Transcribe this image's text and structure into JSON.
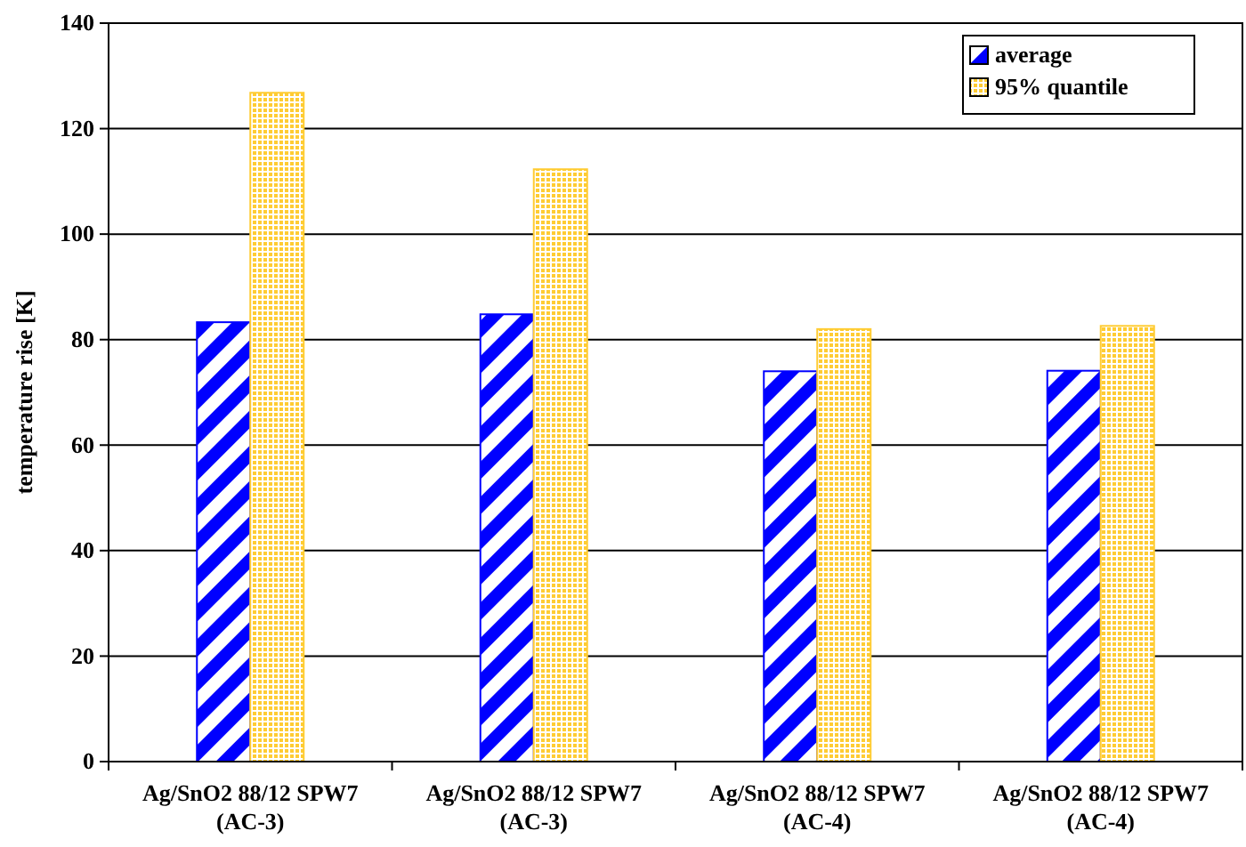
{
  "chart_data": {
    "type": "bar",
    "ylabel": "temperature rise [K]",
    "categories": [
      "Ag/SnO2 88/12 SPW7\n(AC-3)",
      "Ag/SnO2 88/12 SPW7\n(AC-3)",
      "Ag/SnO2 88/12 SPW7\n(AC-4)",
      "Ag/SnO2 88/12 SPW7\n(AC-4)"
    ],
    "series": [
      {
        "name": "average",
        "color": "#0000ff",
        "values": [
          83.3,
          84.8,
          74,
          74.1
        ]
      },
      {
        "name": "95% quantile",
        "color": "#ffcc33",
        "values": [
          126.8,
          112.3,
          82,
          82.6
        ]
      }
    ],
    "ylim": [
      0,
      140
    ],
    "yticks": [
      0,
      20,
      40,
      60,
      80,
      100,
      120,
      140
    ],
    "grid": "y",
    "legend": "top right"
  }
}
